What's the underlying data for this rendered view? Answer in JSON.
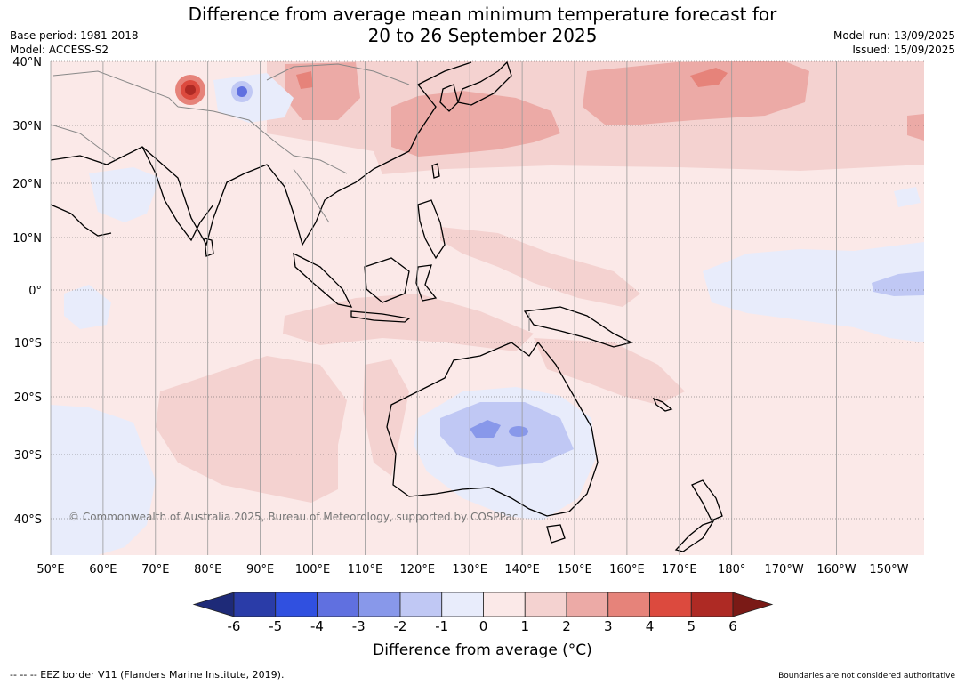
{
  "title_line1": "Difference from average mean minimum temperature forecast for",
  "title_line2": "20 to 26 September 2025",
  "base_period": "Base period: 1981-2018",
  "model": "Model: ACCESS-S2",
  "model_run": "Model run: 13/09/2025",
  "issued": "Issued: 15/09/2025",
  "copyright": "© Commonwealth of Australia 2025, Bureau of Meteorology, supported by COSPPac",
  "eez_note": "--  --  -- EEZ border V11 (Flanders Marine Institute, 2019).",
  "boundaries_note": "Boundaries are not considered authoritative",
  "map": {
    "lat_labels": [
      "40°N",
      "30°N",
      "20°N",
      "10°N",
      "0°",
      "10°S",
      "20°S",
      "30°S",
      "40°S"
    ],
    "lon_labels": [
      "50°E",
      "60°E",
      "70°E",
      "80°E",
      "90°E",
      "100°E",
      "110°E",
      "120°E",
      "130°E",
      "140°E",
      "150°E",
      "160°E",
      "170°E",
      "180°",
      "170°W",
      "160°W",
      "150°W"
    ],
    "colors": {
      "ocean_base": "#fbe9e8",
      "land_line": "#000000",
      "border_line": "#888888",
      "grid_line": "#555555"
    }
  },
  "colorbar": {
    "title": "Difference from average (°C)",
    "tick_labels": [
      "-6",
      "-5",
      "-4",
      "-3",
      "-2",
      "-1",
      "0",
      "1",
      "2",
      "3",
      "4",
      "5",
      "6"
    ],
    "under_color": "#1e2a78",
    "over_color": "#7a1a16",
    "bins": [
      {
        "range": "-6 to -5",
        "color": "#2a3ca8"
      },
      {
        "range": "-5 to -4",
        "color": "#3050e0"
      },
      {
        "range": "-4 to -3",
        "color": "#6070e0"
      },
      {
        "range": "-3 to -2",
        "color": "#8898ea"
      },
      {
        "range": "-2 to -1",
        "color": "#c0c8f4"
      },
      {
        "range": "-1 to 0",
        "color": "#e8ecfb"
      },
      {
        "range": "0 to 1",
        "color": "#fbe9e8"
      },
      {
        "range": "1 to 2",
        "color": "#f4d2d0"
      },
      {
        "range": "2 to 3",
        "color": "#ecaaa6"
      },
      {
        "range": "3 to 4",
        "color": "#e6837a"
      },
      {
        "range": "4 to 5",
        "color": "#dc4a3e"
      },
      {
        "range": "5 to 6",
        "color": "#ae2a24"
      }
    ]
  }
}
